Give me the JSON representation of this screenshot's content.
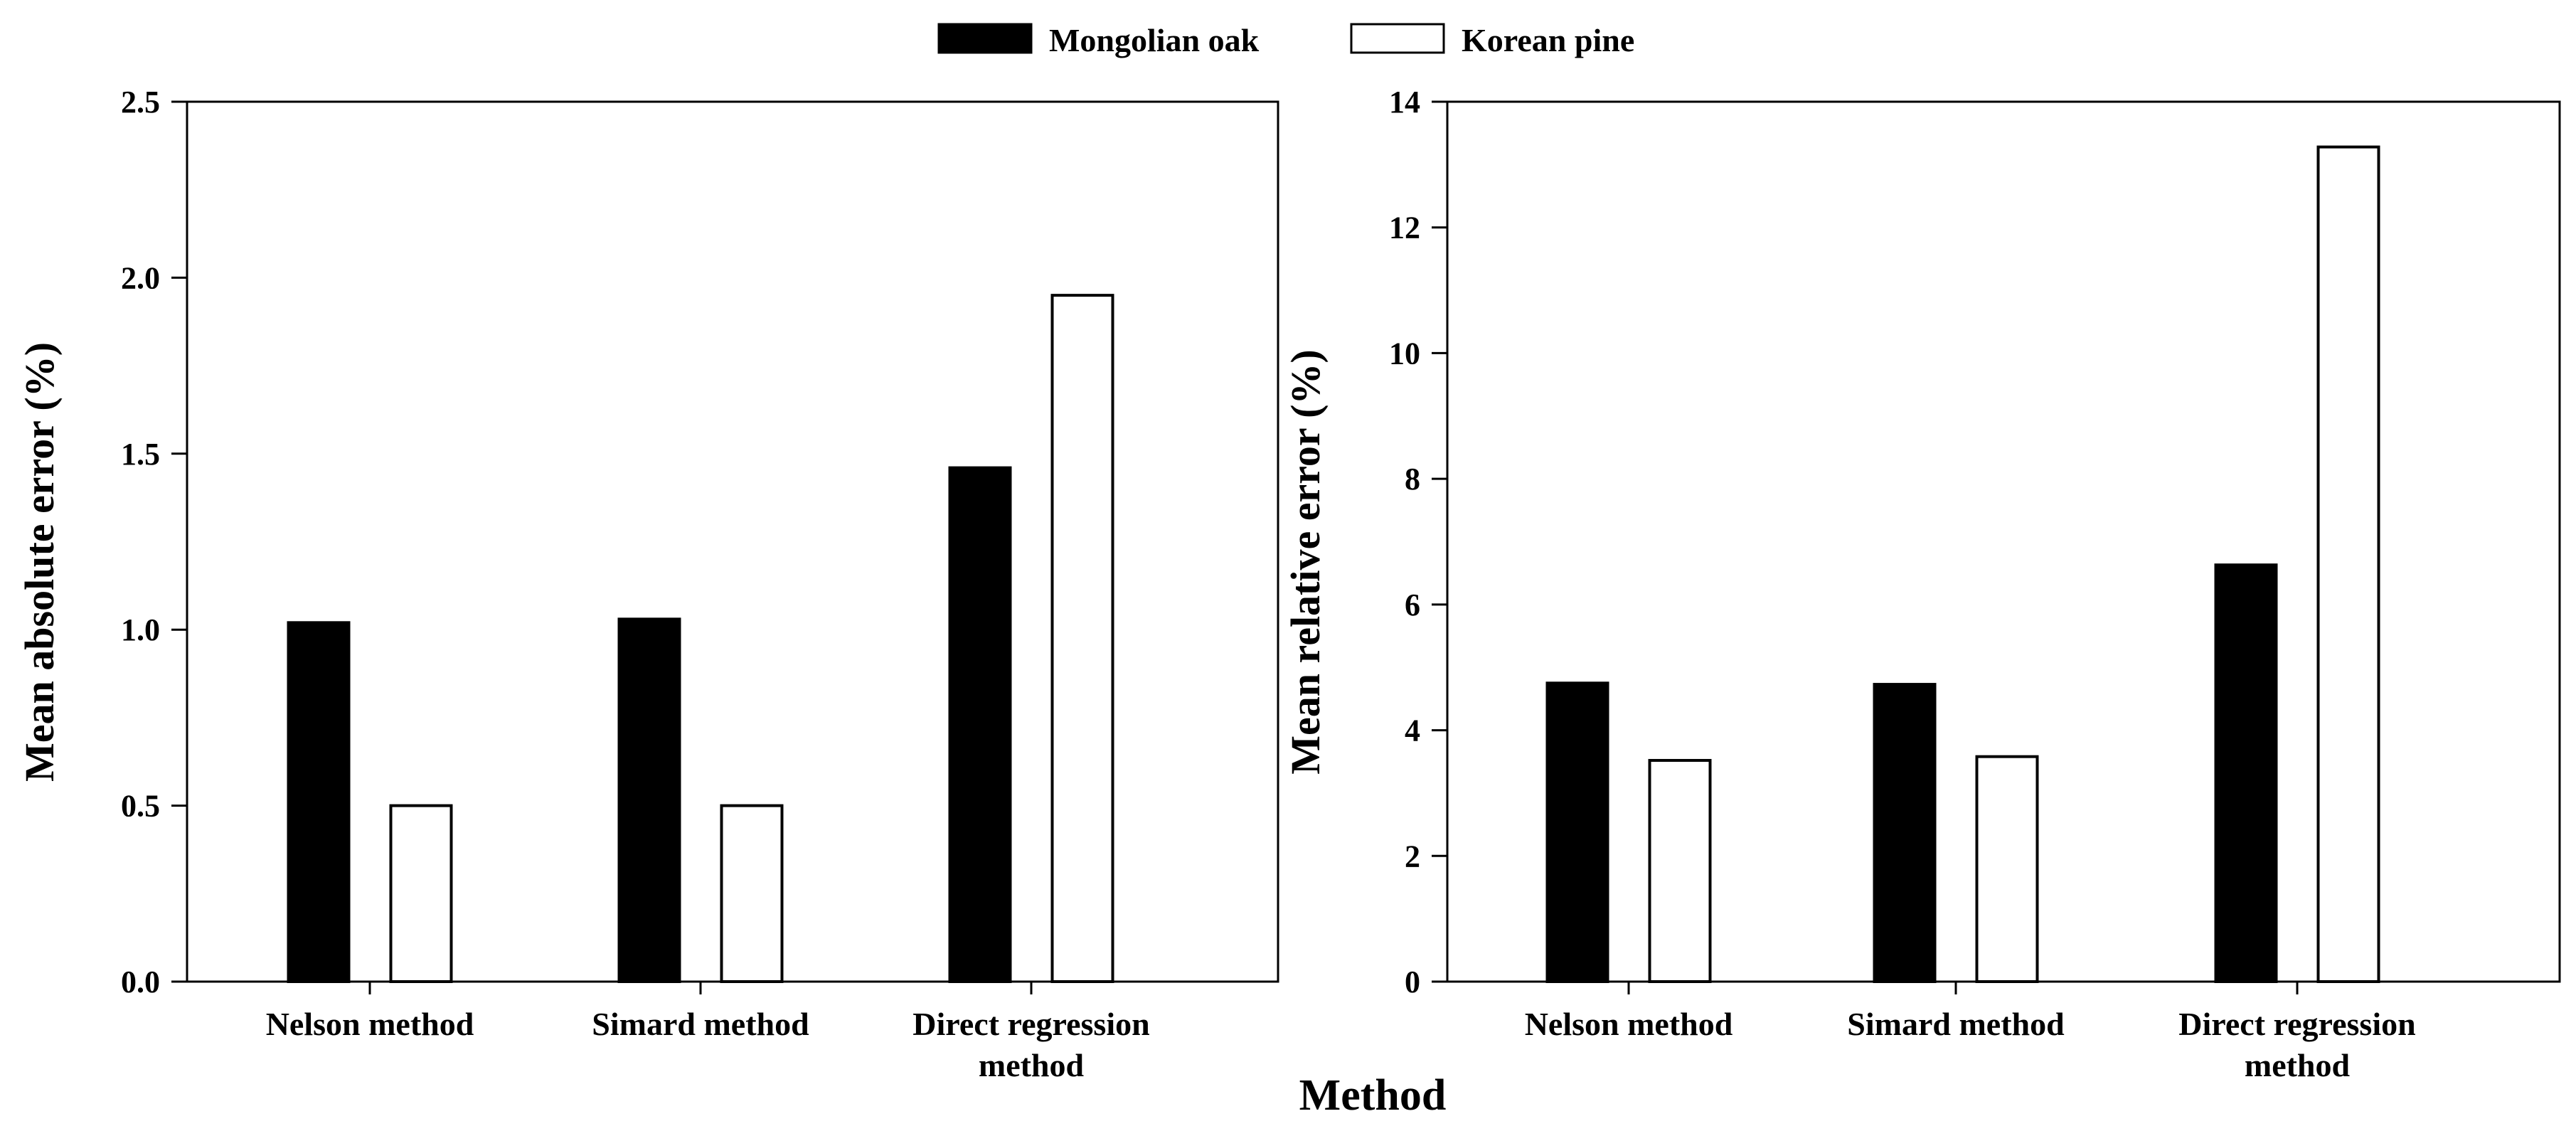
{
  "legend": [
    {
      "label": "Mongolian oak",
      "fill": "#000000"
    },
    {
      "label": "Korean pine",
      "fill": "#ffffff"
    }
  ],
  "xlabel": "Method",
  "chart_data": [
    {
      "type": "bar",
      "ylabel": "Mean absolute error (%)",
      "categories": [
        [
          "Nelson method"
        ],
        [
          "Simard method"
        ],
        [
          "Direct regression",
          "method"
        ]
      ],
      "series": [
        {
          "name": "Mongolian oak",
          "values": [
            1.02,
            1.03,
            1.46
          ]
        },
        {
          "name": "Korean pine",
          "values": [
            0.5,
            0.5,
            1.95
          ]
        }
      ],
      "ylim": [
        0,
        2.5
      ],
      "yticks": [
        "0.0",
        "0.5",
        "1.0",
        "1.5",
        "2.0",
        "2.5"
      ],
      "grid": false
    },
    {
      "type": "bar",
      "ylabel": "Mean relative error (%)",
      "categories": [
        [
          "Nelson method"
        ],
        [
          "Simard method"
        ],
        [
          "Direct regression",
          "method"
        ]
      ],
      "series": [
        {
          "name": "Mongolian oak",
          "values": [
            4.75,
            4.73,
            6.63
          ]
        },
        {
          "name": "Korean pine",
          "values": [
            3.52,
            3.58,
            13.28
          ]
        }
      ],
      "ylim": [
        0,
        14
      ],
      "yticks": [
        "0",
        "2",
        "4",
        "6",
        "8",
        "10",
        "12",
        "14"
      ],
      "grid": false
    }
  ]
}
